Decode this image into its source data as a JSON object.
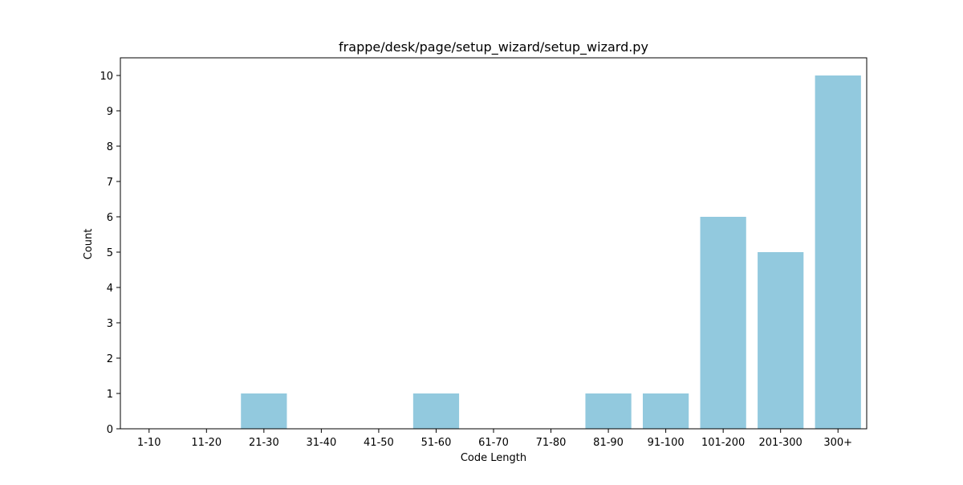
{
  "chart_data": {
    "type": "bar",
    "title": "frappe/desk/page/setup_wizard/setup_wizard.py",
    "xlabel": "Code Length",
    "ylabel": "Count",
    "categories": [
      "1-10",
      "11-20",
      "21-30",
      "31-40",
      "41-50",
      "51-60",
      "61-70",
      "71-80",
      "81-90",
      "91-100",
      "101-200",
      "201-300",
      "300+"
    ],
    "values": [
      0,
      0,
      1,
      0,
      0,
      1,
      0,
      0,
      1,
      1,
      6,
      5,
      10
    ],
    "ylim": [
      0,
      10.5
    ],
    "yticks": [
      0,
      1,
      2,
      3,
      4,
      5,
      6,
      7,
      8,
      9,
      10
    ],
    "bar_color": "#92c9de",
    "grid": false,
    "legend": "none"
  }
}
